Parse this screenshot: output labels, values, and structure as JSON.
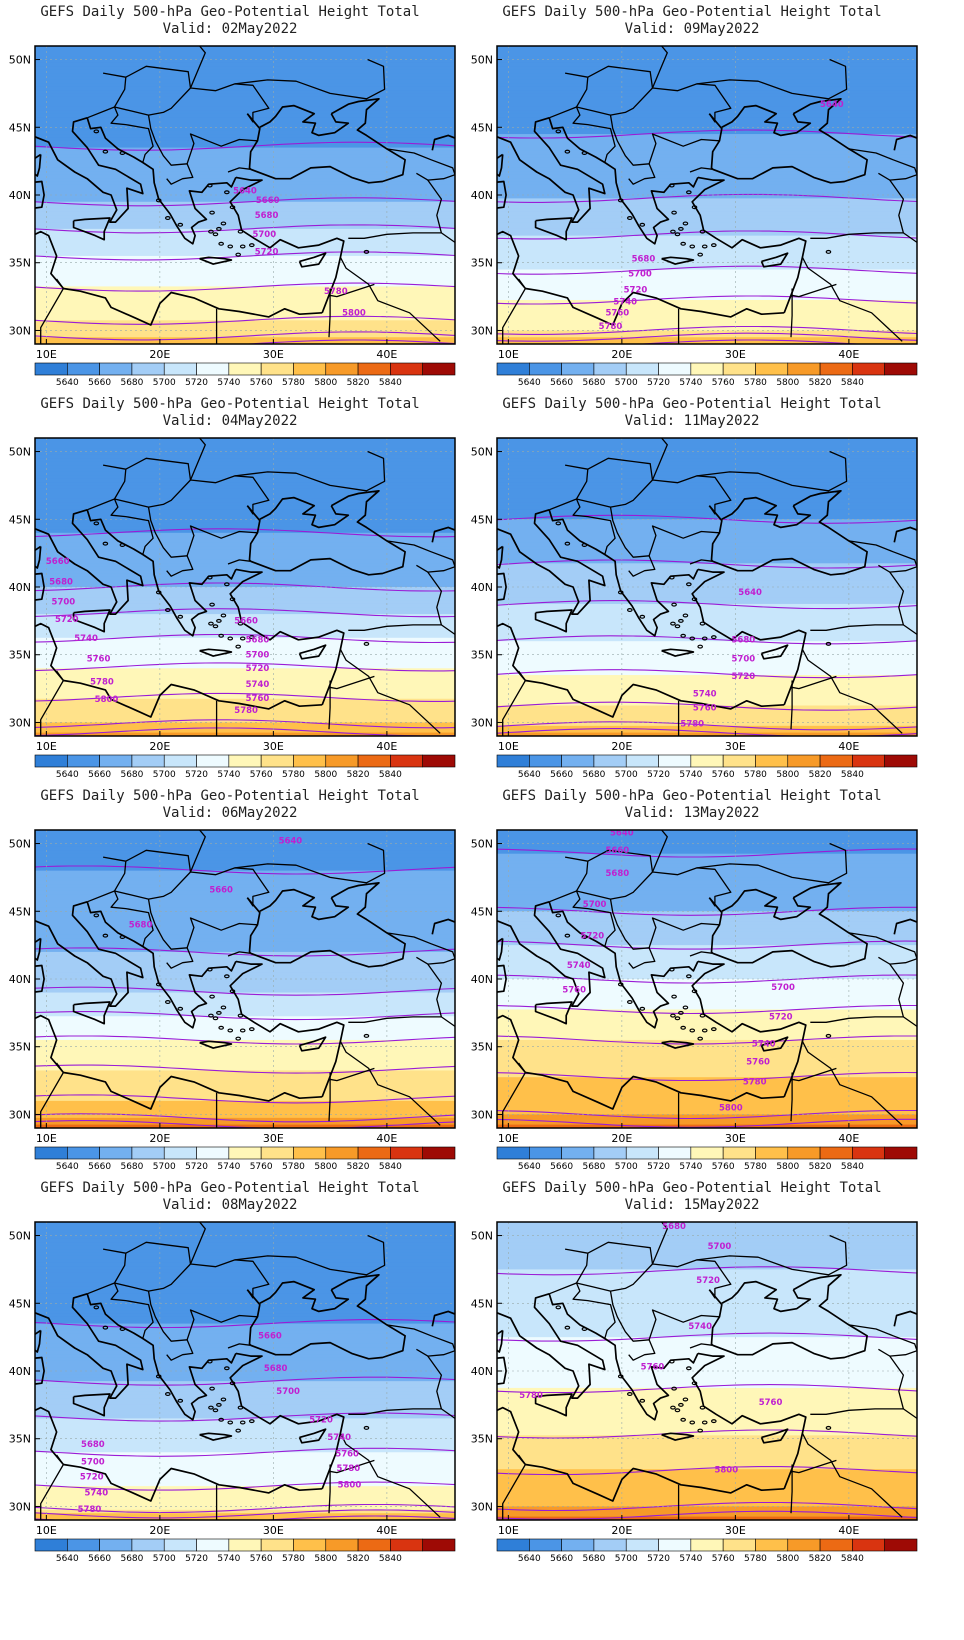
{
  "panels": [
    {
      "title": "GEFS Daily 500-hPa Geo-Potential Height Total",
      "valid": "Valid: 02May2022",
      "profile": [
        5644,
        5654,
        5675,
        5725,
        5766,
        5800
      ],
      "labels": [
        {
          "text": "5640",
          "lon": 27.5,
          "lat": 40.1
        },
        {
          "text": "5660",
          "lon": 29.5,
          "lat": 39.4
        },
        {
          "text": "5680",
          "lon": 29.4,
          "lat": 38.3
        },
        {
          "text": "5700",
          "lon": 29.2,
          "lat": 36.9
        },
        {
          "text": "5720",
          "lon": 29.4,
          "lat": 35.6
        },
        {
          "text": "5780",
          "lon": 35.5,
          "lat": 32.7
        },
        {
          "text": "5800",
          "lon": 37.1,
          "lat": 31.1
        }
      ]
    },
    {
      "title": "GEFS Daily 500-hPa Geo-Potential Height Total",
      "valid": "Valid: 09May2022",
      "profile": [
        5646,
        5658,
        5678,
        5715,
        5760,
        5800
      ],
      "labels": [
        {
          "text": "5640",
          "lon": 38.5,
          "lat": 46.5
        },
        {
          "text": "5680",
          "lon": 21.9,
          "lat": 35.1
        },
        {
          "text": "5700",
          "lon": 21.6,
          "lat": 34.0
        },
        {
          "text": "5720",
          "lon": 21.2,
          "lat": 32.8
        },
        {
          "text": "5740",
          "lon": 20.3,
          "lat": 31.9
        },
        {
          "text": "5760",
          "lon": 19.6,
          "lat": 31.1
        },
        {
          "text": "5780",
          "lon": 19.0,
          "lat": 30.1
        }
      ]
    },
    {
      "title": "GEFS Daily 500-hPa Geo-Potential Height Total",
      "valid": "Valid: 04May2022",
      "profile": [
        5645,
        5655,
        5680,
        5732,
        5776,
        5810
      ],
      "labels": [
        {
          "text": "5660",
          "lon": 11.0,
          "lat": 41.7
        },
        {
          "text": "5680",
          "lon": 11.3,
          "lat": 40.2
        },
        {
          "text": "5700",
          "lon": 11.5,
          "lat": 38.7
        },
        {
          "text": "5720",
          "lon": 11.8,
          "lat": 37.4
        },
        {
          "text": "5740",
          "lon": 13.5,
          "lat": 36.0
        },
        {
          "text": "5760",
          "lon": 14.6,
          "lat": 34.5
        },
        {
          "text": "5780",
          "lon": 14.9,
          "lat": 32.8
        },
        {
          "text": "5800",
          "lon": 15.3,
          "lat": 31.5
        },
        {
          "text": "5660",
          "lon": 27.6,
          "lat": 37.3
        },
        {
          "text": "5680",
          "lon": 28.6,
          "lat": 35.9
        },
        {
          "text": "5700",
          "lon": 28.6,
          "lat": 34.8
        },
        {
          "text": "5720",
          "lon": 28.6,
          "lat": 33.8
        },
        {
          "text": "5740",
          "lon": 28.6,
          "lat": 32.6
        },
        {
          "text": "5760",
          "lon": 28.6,
          "lat": 31.6
        },
        {
          "text": "5780",
          "lon": 27.6,
          "lat": 30.7
        }
      ]
    },
    {
      "title": "GEFS Daily 500-hPa Geo-Potential Height Total",
      "valid": "Valid: 11May2022",
      "profile": [
        5645,
        5660,
        5690,
        5728,
        5770,
        5810
      ],
      "labels": [
        {
          "text": "5640",
          "lon": 31.3,
          "lat": 39.4
        },
        {
          "text": "5680",
          "lon": 30.7,
          "lat": 35.9
        },
        {
          "text": "5700",
          "lon": 30.7,
          "lat": 34.5
        },
        {
          "text": "5720",
          "lon": 30.7,
          "lat": 33.2
        },
        {
          "text": "5740",
          "lon": 27.3,
          "lat": 31.9
        },
        {
          "text": "5760",
          "lon": 27.3,
          "lat": 30.9
        },
        {
          "text": "5780",
          "lon": 26.2,
          "lat": 29.7
        }
      ]
    },
    {
      "title": "GEFS Daily 500-hPa Geo-Potential Height Total",
      "valid": "Valid: 06May2022",
      "profile": [
        5655,
        5665,
        5690,
        5745,
        5790,
        5830
      ],
      "labels": [
        {
          "text": "5640",
          "lon": 31.5,
          "lat": 50.0
        },
        {
          "text": "5660",
          "lon": 25.4,
          "lat": 46.4
        },
        {
          "text": "5680",
          "lon": 18.3,
          "lat": 43.8
        }
      ]
    },
    {
      "title": "GEFS Daily 500-hPa Geo-Potential Height Total",
      "valid": "Valid: 13May2022",
      "profile": [
        5652,
        5680,
        5720,
        5764,
        5800,
        5830
      ],
      "labels": [
        {
          "text": "5640",
          "lon": 20.0,
          "lat": 50.6
        },
        {
          "text": "5660",
          "lon": 19.6,
          "lat": 49.3
        },
        {
          "text": "5680",
          "lon": 19.6,
          "lat": 47.6
        },
        {
          "text": "5700",
          "lon": 17.6,
          "lat": 45.3
        },
        {
          "text": "5720",
          "lon": 17.4,
          "lat": 43.0
        },
        {
          "text": "5740",
          "lon": 16.2,
          "lat": 40.8
        },
        {
          "text": "5760",
          "lon": 15.8,
          "lat": 39.0
        },
        {
          "text": "5700",
          "lon": 34.2,
          "lat": 39.2
        },
        {
          "text": "5720",
          "lon": 34.0,
          "lat": 37.0
        },
        {
          "text": "5740",
          "lon": 32.5,
          "lat": 35.0
        },
        {
          "text": "5760",
          "lon": 32.0,
          "lat": 33.7
        },
        {
          "text": "5780",
          "lon": 31.7,
          "lat": 32.2
        },
        {
          "text": "5800",
          "lon": 29.6,
          "lat": 30.3
        }
      ]
    },
    {
      "title": "GEFS Daily 500-hPa Geo-Potential Height Total",
      "valid": "Valid: 08May2022",
      "profile": [
        5642,
        5654,
        5674,
        5712,
        5752,
        5800
      ],
      "labels": [
        {
          "text": "5660",
          "lon": 29.7,
          "lat": 42.4
        },
        {
          "text": "5680",
          "lon": 30.2,
          "lat": 40.0
        },
        {
          "text": "5700",
          "lon": 31.3,
          "lat": 38.3
        },
        {
          "text": "5720",
          "lon": 34.2,
          "lat": 36.2
        },
        {
          "text": "5740",
          "lon": 35.8,
          "lat": 34.9
        },
        {
          "text": "5760",
          "lon": 36.5,
          "lat": 33.7
        },
        {
          "text": "5780",
          "lon": 36.6,
          "lat": 32.6
        },
        {
          "text": "5800",
          "lon": 36.7,
          "lat": 31.4
        },
        {
          "text": "5680",
          "lon": 14.1,
          "lat": 34.4
        },
        {
          "text": "5700",
          "lon": 14.1,
          "lat": 33.1
        },
        {
          "text": "5720",
          "lon": 14.0,
          "lat": 32.0
        },
        {
          "text": "5740",
          "lon": 14.4,
          "lat": 30.8
        },
        {
          "text": "5780",
          "lon": 13.8,
          "lat": 29.6
        }
      ]
    },
    {
      "title": "GEFS Daily 500-hPa Geo-Potential Height Total",
      "valid": "Valid: 15May2022",
      "profile": [
        5688,
        5708,
        5732,
        5762,
        5800,
        5830
      ],
      "labels": [
        {
          "text": "5680",
          "lon": 24.6,
          "lat": 50.5
        },
        {
          "text": "5700",
          "lon": 28.6,
          "lat": 49.0
        },
        {
          "text": "5720",
          "lon": 27.6,
          "lat": 46.5
        },
        {
          "text": "5740",
          "lon": 26.9,
          "lat": 43.1
        },
        {
          "text": "5760",
          "lon": 22.7,
          "lat": 40.1
        },
        {
          "text": "5780",
          "lon": 12.0,
          "lat": 38.0
        },
        {
          "text": "5760",
          "lon": 33.1,
          "lat": 37.5
        },
        {
          "text": "5800",
          "lon": 29.2,
          "lat": 32.5
        }
      ]
    }
  ],
  "map": {
    "lon_range": [
      9,
      46
    ],
    "lat_range": [
      29,
      51
    ],
    "lon_ticks": [
      "10E",
      "20E",
      "30E",
      "40E"
    ],
    "lat_ticks": [
      "30N",
      "35N",
      "40N",
      "45N",
      "50N"
    ],
    "grid": "dotted"
  },
  "colorbar": {
    "levels": [
      "5640",
      "5660",
      "5680",
      "5700",
      "5720",
      "5740",
      "5760",
      "5780",
      "5800",
      "5820",
      "5840"
    ],
    "colors": [
      "#1565c8",
      "#2f7fd8",
      "#4b95e6",
      "#73b0f0",
      "#a3cdf6",
      "#c8e6fb",
      "#eefbff",
      "#fff7b8",
      "#ffe28a",
      "#ffc04a",
      "#f79a28",
      "#ec6a14",
      "#d93410",
      "#9e0a05"
    ]
  },
  "colors": {
    "contour_line": "#9a1cd6",
    "contour_label": "#c020d0",
    "coastline": "#000000"
  }
}
